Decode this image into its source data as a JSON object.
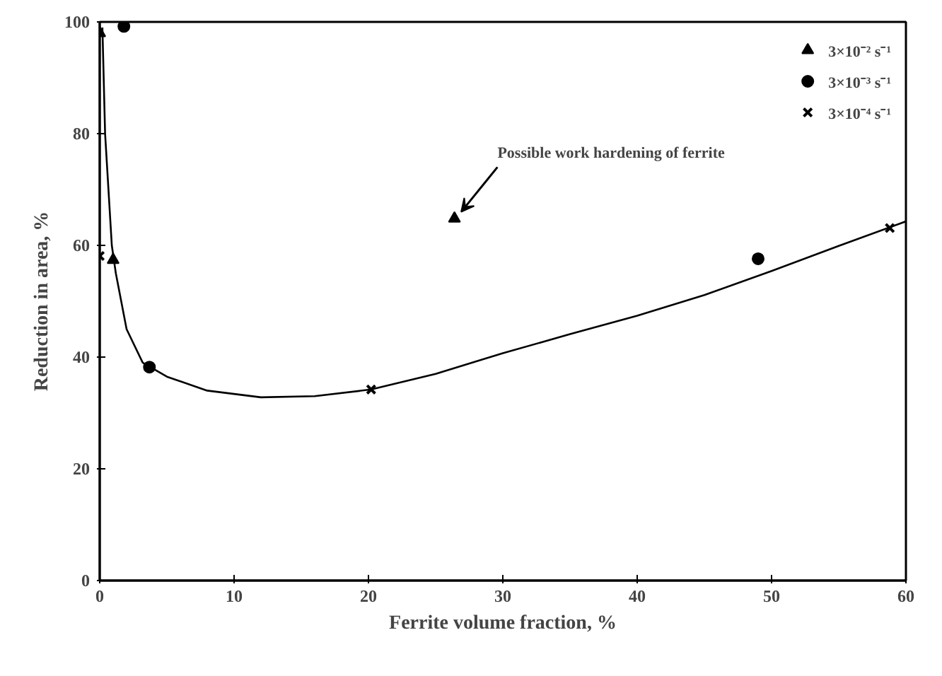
{
  "chart_data": {
    "type": "scatter",
    "xlabel": "Ferrite volume fraction, %",
    "ylabel": "Reduction in area, %",
    "xlim": [
      0,
      60
    ],
    "ylim": [
      0,
      100
    ],
    "xticks": [
      0,
      10,
      20,
      30,
      40,
      50,
      60
    ],
    "yticks": [
      0,
      20,
      40,
      60,
      80,
      100
    ],
    "grid": false,
    "legend": "top right",
    "annotations": [
      {
        "text": "Possible work hardening of ferrite",
        "x": 26.4,
        "y": 65
      }
    ],
    "series": [
      {
        "name": "3×10⁻² s⁻¹",
        "marker": "triangle",
        "color": "#000000",
        "x": [
          0,
          1,
          26.4
        ],
        "values": [
          98,
          57.4,
          64.8
        ]
      },
      {
        "name": "3×10⁻³ s⁻¹",
        "marker": "circle",
        "color": "#000000",
        "x": [
          1.8,
          3.7,
          49
        ],
        "values": [
          99.2,
          38.2,
          57.6
        ]
      },
      {
        "name": "3×10⁻⁴ s⁻¹",
        "marker": "cross",
        "color": "#000000",
        "x": [
          0,
          20.2,
          58.8
        ],
        "values": [
          58.1,
          34.2,
          63.1
        ]
      },
      {
        "type": "line",
        "line_style": "solid",
        "color": "#000000",
        "x": [
          0.2,
          0.4,
          0.9,
          1.2,
          2.0,
          3.2,
          5,
          8,
          12,
          16,
          20.2,
          25,
          30,
          35,
          40,
          45,
          50,
          55,
          60
        ],
        "values": [
          99,
          80,
          60,
          55,
          45,
          39,
          36.5,
          34,
          32.8,
          33,
          34.2,
          37,
          40.7,
          44.1,
          47.4,
          51.1,
          55.4,
          59.9,
          64.3
        ]
      }
    ]
  }
}
